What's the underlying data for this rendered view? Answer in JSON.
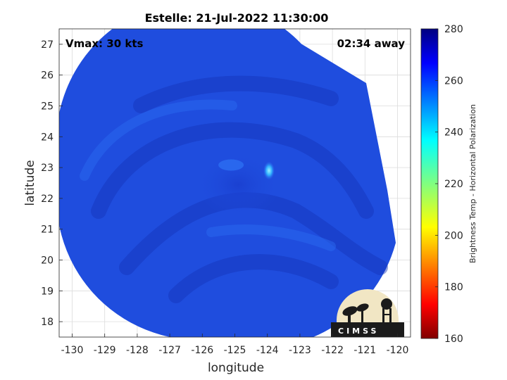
{
  "chart_data": {
    "type": "heatmap",
    "title": "Estelle: 21-Jul-2022 11:30:00",
    "xlabel": "longitude",
    "ylabel": "latitude",
    "xlim": [
      -130.4,
      -119.6
    ],
    "ylim": [
      17.5,
      27.5
    ],
    "x_ticks": [
      -130,
      -129,
      -128,
      -127,
      -126,
      -125,
      -124,
      -123,
      -122,
      -121,
      -120
    ],
    "y_ticks": [
      18,
      19,
      20,
      21,
      22,
      23,
      24,
      25,
      26,
      27
    ],
    "grid": true,
    "colorbar": {
      "label": "Brightness Temp - Horizontal Polarization",
      "range": [
        160,
        280
      ],
      "ticks": [
        160,
        180,
        200,
        220,
        240,
        260,
        280
      ],
      "colormap": "jet"
    },
    "annotations": {
      "top_left": "Vmax: 30 kts",
      "top_right": "02:34 away"
    },
    "storm_center": {
      "lon": -124.9,
      "lat": 22.9
    },
    "bright_spot": {
      "lon": -123.95,
      "lat": 22.9
    },
    "logo_text": "CIMSS"
  },
  "colors": {
    "field_base": "#1f4dde",
    "field_dark": "#1532b8",
    "field_light": "#2a6af0",
    "bright_spot": "#40d8ff",
    "grid": "#dcdcdc",
    "axis": "#262626"
  }
}
